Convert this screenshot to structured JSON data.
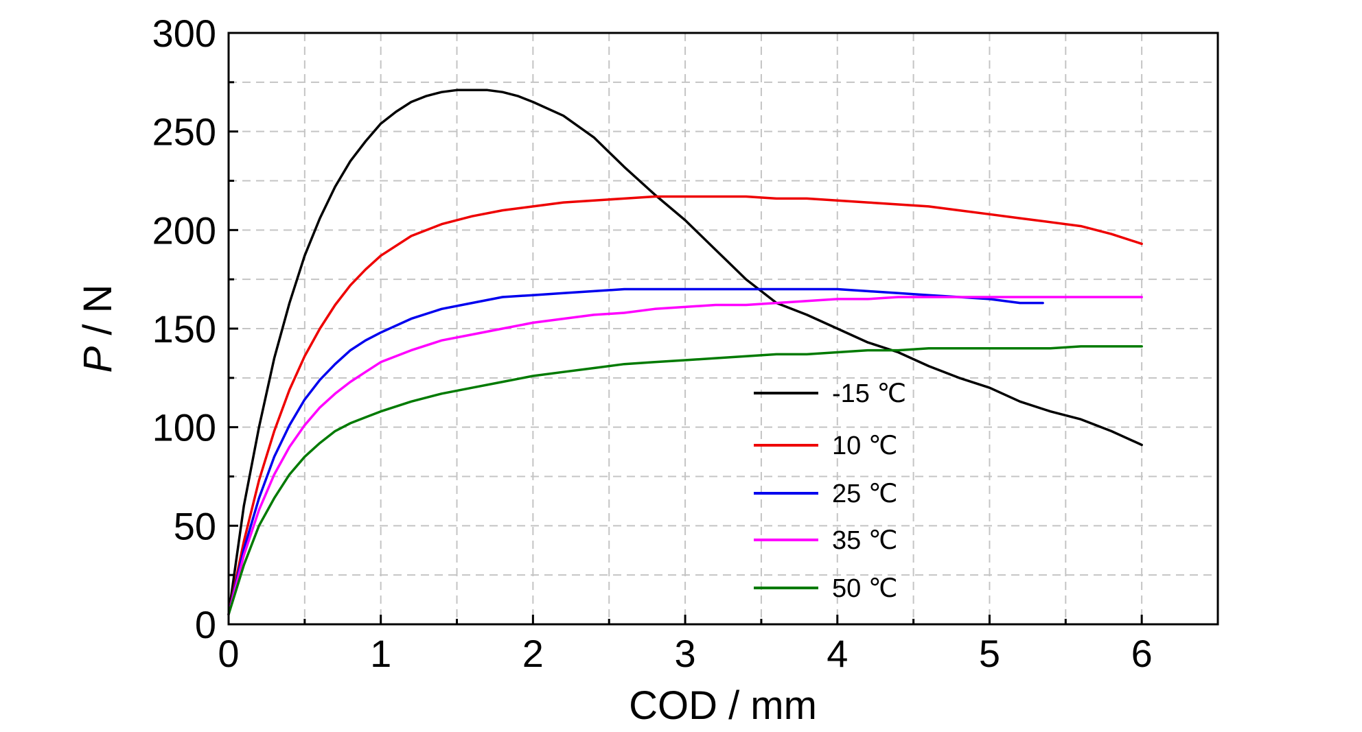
{
  "chart_data": {
    "type": "line",
    "xlabel": "COD / mm",
    "ylabel_italic": "P",
    "ylabel_rest": " / N",
    "xlim": [
      0,
      6.5
    ],
    "ylim": [
      0,
      300
    ],
    "xticks": [
      0,
      1,
      2,
      3,
      4,
      5,
      6
    ],
    "yticks": [
      0,
      50,
      100,
      150,
      200,
      250,
      300
    ],
    "grid": "dashed, every 0.5 mm and every 25 N",
    "legend_position": "lower-right inside plot",
    "series": [
      {
        "name": "-15 ℃",
        "color": "#000000",
        "x": [
          0,
          0.1,
          0.2,
          0.3,
          0.4,
          0.5,
          0.6,
          0.7,
          0.8,
          0.9,
          1.0,
          1.1,
          1.2,
          1.3,
          1.4,
          1.5,
          1.6,
          1.7,
          1.8,
          1.9,
          2.0,
          2.2,
          2.4,
          2.6,
          2.8,
          3.0,
          3.2,
          3.4,
          3.6,
          3.8,
          4.0,
          4.2,
          4.4,
          4.6,
          4.8,
          5.0,
          5.2,
          5.4,
          5.6,
          5.8,
          6.0
        ],
        "y": [
          5,
          60,
          100,
          135,
          163,
          187,
          206,
          222,
          235,
          245,
          254,
          260,
          265,
          268,
          270,
          271,
          271,
          271,
          270,
          268,
          265,
          258,
          247,
          232,
          218,
          205,
          190,
          175,
          163,
          157,
          150,
          143,
          138,
          131,
          125,
          120,
          113,
          108,
          104,
          98,
          91
        ]
      },
      {
        "name": "10 ℃",
        "color": "#ee0000",
        "x": [
          0,
          0.1,
          0.2,
          0.3,
          0.4,
          0.5,
          0.6,
          0.7,
          0.8,
          0.9,
          1.0,
          1.2,
          1.4,
          1.6,
          1.8,
          2.0,
          2.2,
          2.4,
          2.6,
          2.8,
          3.0,
          3.2,
          3.4,
          3.6,
          3.8,
          4.0,
          4.2,
          4.4,
          4.6,
          4.8,
          5.0,
          5.2,
          5.4,
          5.6,
          5.8,
          6.0
        ],
        "y": [
          5,
          42,
          73,
          98,
          119,
          136,
          150,
          162,
          172,
          180,
          187,
          197,
          203,
          207,
          210,
          212,
          214,
          215,
          216,
          217,
          217,
          217,
          217,
          216,
          216,
          215,
          214,
          213,
          212,
          210,
          208,
          206,
          204,
          202,
          198,
          193
        ]
      },
      {
        "name": "25 ℃",
        "color": "#0000ee",
        "x": [
          0,
          0.1,
          0.2,
          0.3,
          0.4,
          0.5,
          0.6,
          0.7,
          0.8,
          0.9,
          1.0,
          1.2,
          1.4,
          1.6,
          1.8,
          2.0,
          2.2,
          2.4,
          2.6,
          2.8,
          3.0,
          3.2,
          3.4,
          3.6,
          3.8,
          4.0,
          4.2,
          4.4,
          4.6,
          4.8,
          5.0,
          5.2,
          5.35
        ],
        "y": [
          5,
          38,
          64,
          85,
          101,
          114,
          124,
          132,
          139,
          144,
          148,
          155,
          160,
          163,
          166,
          167,
          168,
          169,
          170,
          170,
          170,
          170,
          170,
          170,
          170,
          170,
          169,
          168,
          167,
          166,
          165,
          163,
          163
        ]
      },
      {
        "name": "35 ℃",
        "color": "#ff00ff",
        "x": [
          0,
          0.1,
          0.2,
          0.3,
          0.4,
          0.5,
          0.6,
          0.7,
          0.8,
          0.9,
          1.0,
          1.2,
          1.4,
          1.6,
          1.8,
          2.0,
          2.2,
          2.4,
          2.6,
          2.8,
          3.0,
          3.2,
          3.4,
          3.6,
          3.8,
          4.0,
          4.2,
          4.4,
          4.6,
          4.8,
          5.0,
          5.2,
          5.4,
          5.6,
          5.8,
          6.0
        ],
        "y": [
          5,
          35,
          58,
          76,
          90,
          101,
          110,
          117,
          123,
          128,
          133,
          139,
          144,
          147,
          150,
          153,
          155,
          157,
          158,
          160,
          161,
          162,
          162,
          163,
          164,
          165,
          165,
          166,
          166,
          166,
          166,
          166,
          166,
          166,
          166,
          166
        ]
      },
      {
        "name": "50 ℃",
        "color": "#007a00",
        "x": [
          0,
          0.1,
          0.2,
          0.3,
          0.4,
          0.5,
          0.6,
          0.7,
          0.8,
          0.9,
          1.0,
          1.2,
          1.4,
          1.6,
          1.8,
          2.0,
          2.2,
          2.4,
          2.6,
          2.8,
          3.0,
          3.2,
          3.4,
          3.6,
          3.8,
          4.0,
          4.2,
          4.4,
          4.6,
          4.8,
          5.0,
          5.2,
          5.4,
          5.6,
          5.8,
          6.0
        ],
        "y": [
          5,
          30,
          50,
          64,
          76,
          85,
          92,
          98,
          102,
          105,
          108,
          113,
          117,
          120,
          123,
          126,
          128,
          130,
          132,
          133,
          134,
          135,
          136,
          137,
          137,
          138,
          139,
          139,
          140,
          140,
          140,
          140,
          140,
          141,
          141,
          141
        ]
      }
    ]
  }
}
